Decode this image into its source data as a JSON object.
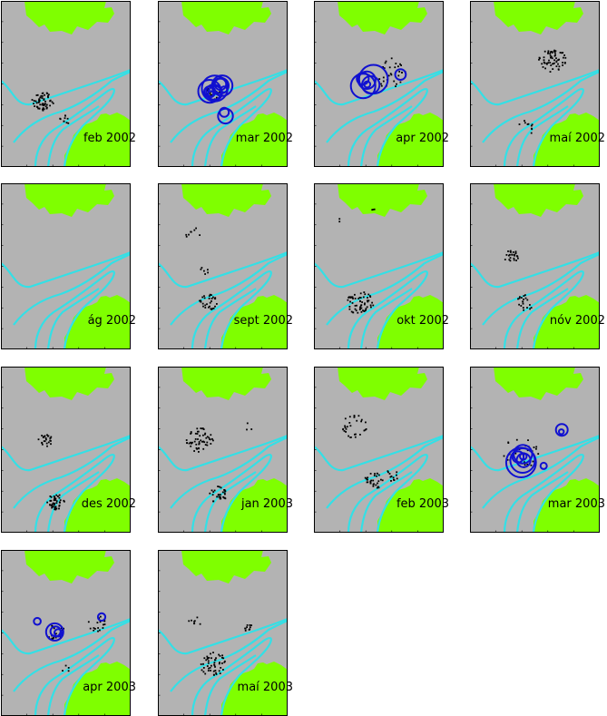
{
  "colors": {
    "background": "#b3b3b3",
    "land": "#7fff00",
    "contour": "#33e0e6",
    "event": "#000000",
    "large_event": "#1010d0",
    "frame": "#000000"
  },
  "panels": [
    {
      "label": "feb 2002",
      "clusters": [
        [
          45,
          110,
          12,
          55
        ],
        [
          70,
          130,
          6,
          10
        ]
      ],
      "circles": []
    },
    {
      "label": "mar 2002",
      "clusters": [
        [
          60,
          100,
          10,
          25
        ]
      ],
      "circles": [
        [
          60,
          100,
          16,
          6
        ],
        [
          70,
          95,
          12,
          4
        ],
        [
          75,
          125,
          8,
          2
        ]
      ]
    },
    {
      "label": "apr 2002",
      "clusters": [
        [
          85,
          80,
          20,
          30
        ]
      ],
      "circles": [
        [
          60,
          90,
          18,
          6
        ],
        [
          95,
          80,
          6,
          1
        ]
      ]
    },
    {
      "label": "maí 2002",
      "clusters": [
        [
          90,
          65,
          15,
          60
        ],
        [
          60,
          140,
          10,
          10
        ]
      ],
      "circles": []
    },
    {
      "label": "ág 2002",
      "clusters": [],
      "circles": []
    },
    {
      "label": "sept 2002",
      "clusters": [
        [
          40,
          55,
          10,
          8
        ],
        [
          55,
          130,
          10,
          30
        ],
        [
          50,
          95,
          5,
          6
        ]
      ],
      "circles": []
    },
    {
      "label": "okt 2002",
      "clusters": [
        [
          50,
          130,
          15,
          60
        ],
        [
          25,
          40,
          3,
          2
        ],
        [
          65,
          28,
          2,
          3
        ]
      ],
      "circles": []
    },
    {
      "label": "nóv 2002",
      "clusters": [
        [
          45,
          80,
          8,
          25
        ],
        [
          60,
          130,
          10,
          20
        ]
      ],
      "circles": []
    },
    {
      "label": "des 2002",
      "clusters": [
        [
          48,
          80,
          8,
          25
        ],
        [
          60,
          148,
          10,
          45
        ]
      ],
      "circles": []
    },
    {
      "label": "jan 2003",
      "clusters": [
        [
          45,
          80,
          15,
          55
        ],
        [
          65,
          140,
          10,
          30
        ],
        [
          100,
          65,
          5,
          3
        ]
      ],
      "circles": []
    },
    {
      "label": "feb 2003",
      "clusters": [
        [
          45,
          65,
          15,
          30
        ],
        [
          65,
          125,
          10,
          30
        ],
        [
          85,
          118,
          8,
          12
        ]
      ],
      "circles": []
    },
    {
      "label": "mar 2003",
      "clusters": [
        [
          55,
          95,
          20,
          30
        ]
      ],
      "circles": [
        [
          55,
          100,
          16,
          6
        ],
        [
          100,
          70,
          6,
          2
        ],
        [
          80,
          110,
          4,
          1
        ]
      ]
    },
    {
      "label": "apr 2003",
      "clusters": [
        [
          60,
          90,
          10,
          20
        ],
        [
          105,
          80,
          10,
          18
        ],
        [
          70,
          130,
          5,
          4
        ]
      ],
      "circles": [
        [
          60,
          90,
          9,
          3
        ],
        [
          40,
          80,
          5,
          1
        ],
        [
          110,
          75,
          4,
          1
        ]
      ]
    },
    {
      "label": "maí 2003",
      "clusters": [
        [
          60,
          125,
          15,
          50
        ],
        [
          40,
          80,
          8,
          8
        ],
        [
          100,
          85,
          6,
          10
        ]
      ],
      "circles": []
    }
  ]
}
